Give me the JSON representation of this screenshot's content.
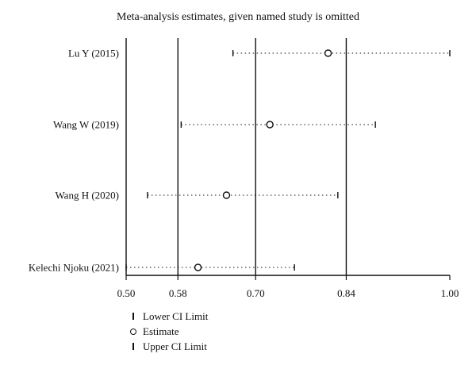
{
  "chart_data": {
    "type": "forest",
    "title": "Meta-analysis estimates, given named study is omitted",
    "x_ticks": [
      0.5,
      0.58,
      0.7,
      0.84,
      1.0
    ],
    "x_tick_labels": [
      "0.50",
      "0.58",
      "0.70",
      "0.84",
      "1.00"
    ],
    "reference_lines": [
      0.58,
      0.7,
      0.84
    ],
    "xlim": [
      0.5,
      1.0
    ],
    "studies": [
      {
        "name": "Lu Y (2015)",
        "lower": 0.665,
        "estimate": 0.812,
        "upper": 1.0
      },
      {
        "name": "Wang W (2019)",
        "lower": 0.585,
        "estimate": 0.722,
        "upper": 0.885
      },
      {
        "name": "Wang H (2020)",
        "lower": 0.533,
        "estimate": 0.655,
        "upper": 0.827
      },
      {
        "name": "Kelechi Njoku (2021)",
        "lower": 0.5,
        "estimate": 0.611,
        "upper": 0.76
      }
    ],
    "legend": [
      {
        "symbol": "tick",
        "label": "Lower CI Limit"
      },
      {
        "symbol": "circle",
        "label": "Estimate"
      },
      {
        "symbol": "tick",
        "label": "Upper CI Limit"
      }
    ]
  }
}
